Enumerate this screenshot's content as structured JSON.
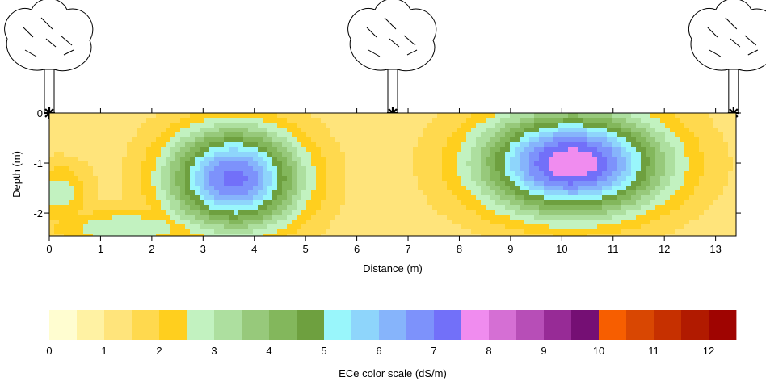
{
  "chart_data": [
    {
      "type": "heatmap",
      "title": "",
      "xlabel": "Distance (m)",
      "ylabel": "Depth (m)",
      "xlim": [
        0,
        13.4
      ],
      "ylim": [
        -2.45,
        0
      ],
      "x_ticks": [
        "0",
        "1",
        "2",
        "3",
        "4",
        "5",
        "6",
        "7",
        "8",
        "9",
        "10",
        "11",
        "12",
        "13"
      ],
      "y_ticks": [
        "0",
        "-1",
        "-2"
      ],
      "tree_positions_m": [
        0,
        6.7,
        13.35
      ],
      "field": {
        "background_ece": 1.2,
        "features": [
          {
            "name": "left-conductive-body",
            "cx": 3.6,
            "cy": -1.3,
            "rx": 1.9,
            "ry": 1.5,
            "peak_ece": 7.2
          },
          {
            "name": "right-conductive-body",
            "cx": 10.2,
            "cy": -1.0,
            "rx": 2.6,
            "ry": 1.5,
            "peak_ece": 8.0
          },
          {
            "name": "left-edge-moderate",
            "cx": 0.2,
            "cy": -1.6,
            "rx": 0.9,
            "ry": 0.9,
            "peak_ece": 2.8
          },
          {
            "name": "bottom-left-moderate",
            "cx": 1.5,
            "cy": -2.3,
            "rx": 2.3,
            "ry": 0.6,
            "peak_ece": 3.0
          }
        ]
      }
    },
    {
      "type": "heatmap",
      "title": "ECe color scale (dS/m)",
      "range": [
        0,
        12.5
      ],
      "step": 0.5,
      "tick_labels": [
        "0",
        "1",
        "2",
        "3",
        "4",
        "5",
        "6",
        "7",
        "8",
        "9",
        "10",
        "11",
        "12"
      ],
      "colors": [
        "#fffdd0",
        "#fff2a3",
        "#ffe47b",
        "#ffd94e",
        "#ffcf1e",
        "#c2f2c0",
        "#addf9f",
        "#97c97b",
        "#83b75c",
        "#6ea03f",
        "#99f6fb",
        "#8ed5fb",
        "#86b4fb",
        "#7d92fb",
        "#7270f9",
        "#f08cef",
        "#d56fd4",
        "#b74eb7",
        "#972b96",
        "#750f74",
        "#f75e00",
        "#d94702",
        "#c63000",
        "#b11a00",
        "#9f0401"
      ]
    }
  ]
}
